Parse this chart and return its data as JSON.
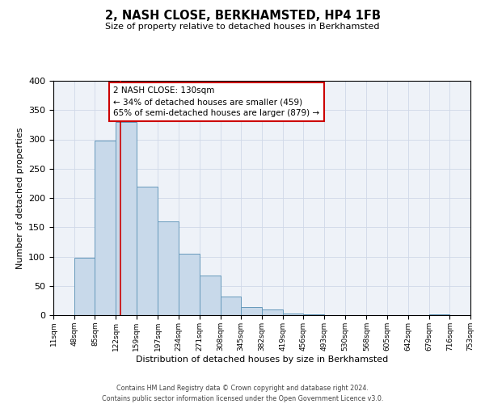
{
  "title": "2, NASH CLOSE, BERKHAMSTED, HP4 1FB",
  "subtitle": "Size of property relative to detached houses in Berkhamsted",
  "xlabel": "Distribution of detached houses by size in Berkhamsted",
  "ylabel": "Number of detached properties",
  "bin_edges": [
    11,
    48,
    85,
    122,
    159,
    197,
    234,
    271,
    308,
    345,
    382,
    419,
    456,
    493,
    530,
    568,
    605,
    642,
    679,
    716,
    753
  ],
  "bar_heights": [
    0,
    98,
    298,
    330,
    220,
    160,
    105,
    68,
    32,
    14,
    10,
    3,
    1,
    0,
    0,
    0,
    0,
    0,
    1,
    0
  ],
  "bar_facecolor": "#c8d9ea",
  "bar_edgecolor": "#6699bb",
  "vline_x": 130,
  "vline_color": "#cc0000",
  "annotation_text": "2 NASH CLOSE: 130sqm\n← 34% of detached houses are smaller (459)\n65% of semi-detached houses are larger (879) →",
  "annotation_box_edgecolor": "#cc0000",
  "annotation_box_facecolor": "#ffffff",
  "ylim": [
    0,
    400
  ],
  "yticks": [
    0,
    50,
    100,
    150,
    200,
    250,
    300,
    350,
    400
  ],
  "xtick_labels": [
    "11sqm",
    "48sqm",
    "85sqm",
    "122sqm",
    "159sqm",
    "197sqm",
    "234sqm",
    "271sqm",
    "308sqm",
    "345sqm",
    "382sqm",
    "419sqm",
    "456sqm",
    "493sqm",
    "530sqm",
    "568sqm",
    "605sqm",
    "642sqm",
    "679sqm",
    "716sqm",
    "753sqm"
  ],
  "grid_color": "#d0d8e8",
  "background_color": "#eef2f8",
  "footer_line1": "Contains HM Land Registry data © Crown copyright and database right 2024.",
  "footer_line2": "Contains public sector information licensed under the Open Government Licence v3.0."
}
